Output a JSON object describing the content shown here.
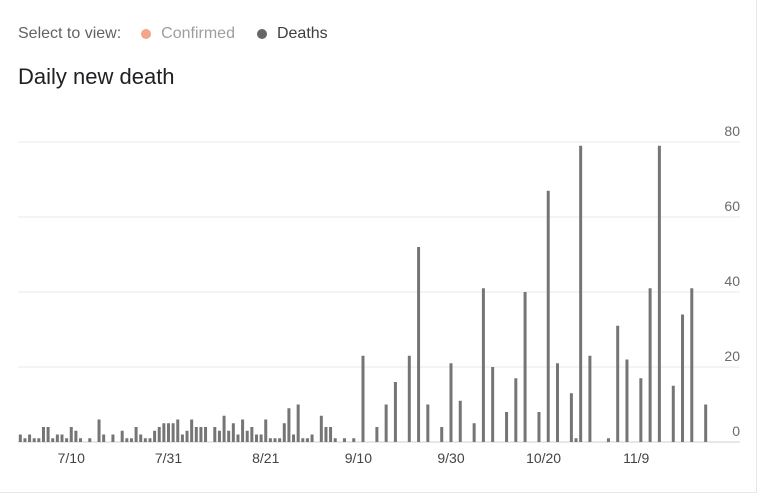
{
  "selector": {
    "label": "Select to view:",
    "options": [
      {
        "label": "Confirmed",
        "color": "#f4a58a",
        "active": false
      },
      {
        "label": "Deaths",
        "color": "#666666",
        "active": true
      }
    ]
  },
  "chart_data": {
    "type": "bar",
    "title": "Daily new death",
    "bar_color": "#757575",
    "grid": true,
    "ylim": [
      0,
      80
    ],
    "y_ticks": [
      0,
      20,
      40,
      60,
      80
    ],
    "x_tick_labels": [
      {
        "label": "7/10",
        "index": 11
      },
      {
        "label": "7/31",
        "index": 32
      },
      {
        "label": "8/21",
        "index": 53
      },
      {
        "label": "9/10",
        "index": 73
      },
      {
        "label": "9/30",
        "index": 93
      },
      {
        "label": "10/20",
        "index": 113
      },
      {
        "label": "11/9",
        "index": 133
      }
    ],
    "values": [
      2,
      1,
      2,
      1,
      1,
      4,
      4,
      1,
      2,
      2,
      1,
      4,
      3,
      1,
      0,
      1,
      0,
      6,
      2,
      0,
      2,
      0,
      3,
      1,
      1,
      4,
      2,
      1,
      1,
      3,
      4,
      5,
      5,
      5,
      6,
      2,
      3,
      6,
      4,
      4,
      4,
      0,
      4,
      3,
      7,
      3,
      5,
      2,
      6,
      3,
      4,
      2,
      2,
      6,
      1,
      1,
      1,
      5,
      9,
      2,
      10,
      1,
      1,
      2,
      0,
      7,
      4,
      4,
      1,
      0,
      1,
      0,
      1,
      0,
      23,
      0,
      0,
      4,
      0,
      10,
      0,
      16,
      0,
      0,
      23,
      0,
      52,
      0,
      10,
      0,
      0,
      4,
      0,
      21,
      0,
      11,
      0,
      0,
      5,
      0,
      41,
      0,
      20,
      0,
      0,
      8,
      0,
      17,
      0,
      40,
      0,
      0,
      8,
      0,
      67,
      0,
      21,
      0,
      0,
      13,
      1,
      79,
      0,
      23,
      0,
      0,
      0,
      1,
      0,
      31,
      0,
      22,
      0,
      0,
      17,
      0,
      41,
      0,
      79,
      0,
      0,
      15,
      0,
      34,
      0,
      41,
      0,
      0,
      10
    ]
  }
}
